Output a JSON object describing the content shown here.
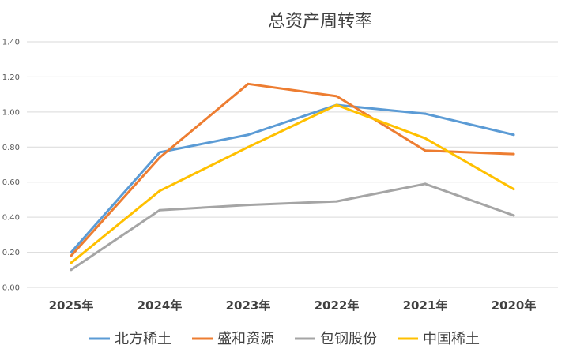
{
  "chart_data": {
    "type": "line",
    "title": "总资产周转率",
    "categories": [
      "2025年",
      "2024年",
      "2023年",
      "2022年",
      "2021年",
      "2020年"
    ],
    "ylim": [
      0,
      1.4
    ],
    "yticks": [
      "0.00",
      "0.20",
      "0.40",
      "0.60",
      "0.80",
      "1.00",
      "1.20",
      "1.40"
    ],
    "grid": true,
    "legend_position": "bottom",
    "series": [
      {
        "name": "北方稀土",
        "color": "#5B9BD5",
        "values": [
          0.2,
          0.77,
          0.87,
          1.04,
          0.99,
          0.87
        ]
      },
      {
        "name": "盛和资源",
        "color": "#ED7D31",
        "values": [
          0.18,
          0.74,
          1.16,
          1.09,
          0.78,
          0.76
        ]
      },
      {
        "name": "包钢股份",
        "color": "#A5A5A5",
        "values": [
          0.1,
          0.44,
          0.47,
          0.49,
          0.59,
          0.41
        ]
      },
      {
        "name": "中国稀土",
        "color": "#FFC000",
        "values": [
          0.14,
          0.55,
          0.8,
          1.04,
          0.85,
          0.56
        ]
      }
    ]
  }
}
